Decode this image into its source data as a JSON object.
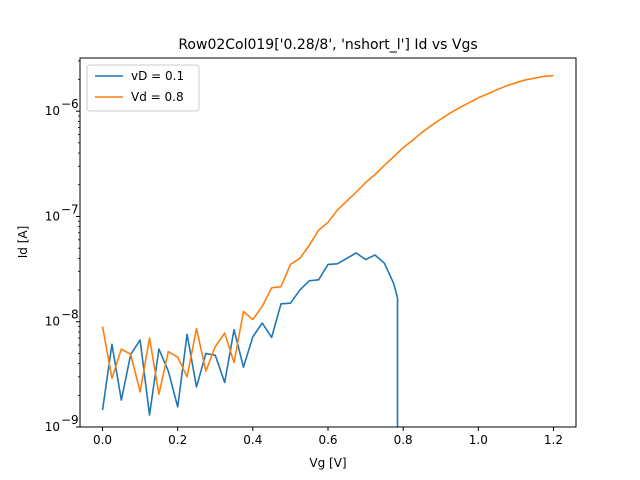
{
  "chart_data": {
    "type": "line",
    "title": "Row02Col019['0.28/8', 'nshort_l'] Id vs Vgs",
    "xlabel": "Vg [V]",
    "ylabel": "Id [A]",
    "xlim": [
      -0.06,
      1.26
    ],
    "ylim": [
      1e-09,
      3.2e-06
    ],
    "yscale": "log",
    "x_ticks": [
      0.0,
      0.2,
      0.4,
      0.6,
      0.8,
      1.0,
      1.2
    ],
    "x_tick_labels": [
      "0.0",
      "0.2",
      "0.4",
      "0.6",
      "0.8",
      "1.0",
      "1.2"
    ],
    "y_ticks": [
      1e-09,
      1e-08,
      1e-07,
      1e-06
    ],
    "y_tick_labels": [
      "10",
      "10",
      "10",
      "10"
    ],
    "y_tick_exponents": [
      "−9",
      "−8",
      "−7",
      "−6"
    ],
    "legend_position": "top-left",
    "grid": false,
    "series": [
      {
        "name": "vD = 0.1",
        "color": "#1f77b4",
        "x": [
          0.0,
          0.025,
          0.05,
          0.075,
          0.1,
          0.125,
          0.15,
          0.175,
          0.2,
          0.225,
          0.25,
          0.275,
          0.3,
          0.325,
          0.35,
          0.375,
          0.4,
          0.425,
          0.45,
          0.475,
          0.5,
          0.525,
          0.55,
          0.575,
          0.6,
          0.625,
          0.65,
          0.675,
          0.7,
          0.725,
          0.75,
          0.775,
          0.785,
          0.785
        ],
        "y": [
          1.45e-09,
          6.1e-09,
          1.8e-09,
          4.9e-09,
          6.7e-09,
          1.3e-09,
          5.5e-09,
          3.4e-09,
          1.55e-09,
          7.6e-09,
          2.4e-09,
          5e-09,
          4.8e-09,
          2.65e-09,
          8.4e-09,
          3.7e-09,
          7.2e-09,
          9.7e-09,
          7.1e-09,
          1.48e-08,
          1.5e-08,
          2e-08,
          2.45e-08,
          2.5e-08,
          3.5e-08,
          3.55e-08,
          4e-08,
          4.5e-08,
          3.9e-08,
          4.3e-08,
          3.6e-08,
          2.3e-08,
          1.68e-08,
          9.6e-10
        ]
      },
      {
        "name": "Vd = 0.8",
        "color": "#ff7f0e",
        "x": [
          0.0,
          0.025,
          0.05,
          0.075,
          0.1,
          0.125,
          0.15,
          0.175,
          0.2,
          0.225,
          0.25,
          0.275,
          0.3,
          0.325,
          0.35,
          0.375,
          0.4,
          0.425,
          0.45,
          0.475,
          0.5,
          0.525,
          0.55,
          0.575,
          0.6,
          0.625,
          0.65,
          0.675,
          0.7,
          0.725,
          0.75,
          0.775,
          0.8,
          0.825,
          0.85,
          0.875,
          0.9,
          0.925,
          0.95,
          0.975,
          1.0,
          1.025,
          1.05,
          1.075,
          1.1,
          1.125,
          1.15,
          1.175,
          1.2
        ],
        "y": [
          9e-09,
          2.9e-09,
          5.5e-09,
          4.9e-09,
          2.15e-09,
          7e-09,
          2.05e-09,
          5.2e-09,
          4.6e-09,
          3e-09,
          8.6e-09,
          3.4e-09,
          5.8e-09,
          7.8e-09,
          4.1e-09,
          1.25e-08,
          1.05e-08,
          1.4e-08,
          2.1e-08,
          2.15e-08,
          3.5e-08,
          4e-08,
          5.3e-08,
          7.4e-08,
          8.8e-08,
          1.15e-07,
          1.4e-07,
          1.7e-07,
          2.1e-07,
          2.5e-07,
          3.05e-07,
          3.7e-07,
          4.5e-07,
          5.3e-07,
          6.3e-07,
          7.3e-07,
          8.4e-07,
          9.6e-07,
          1.08e-06,
          1.2e-06,
          1.34e-06,
          1.46e-06,
          1.6e-06,
          1.74e-06,
          1.86e-06,
          1.98e-06,
          2.06e-06,
          2.14e-06,
          2.18e-06
        ]
      }
    ]
  }
}
